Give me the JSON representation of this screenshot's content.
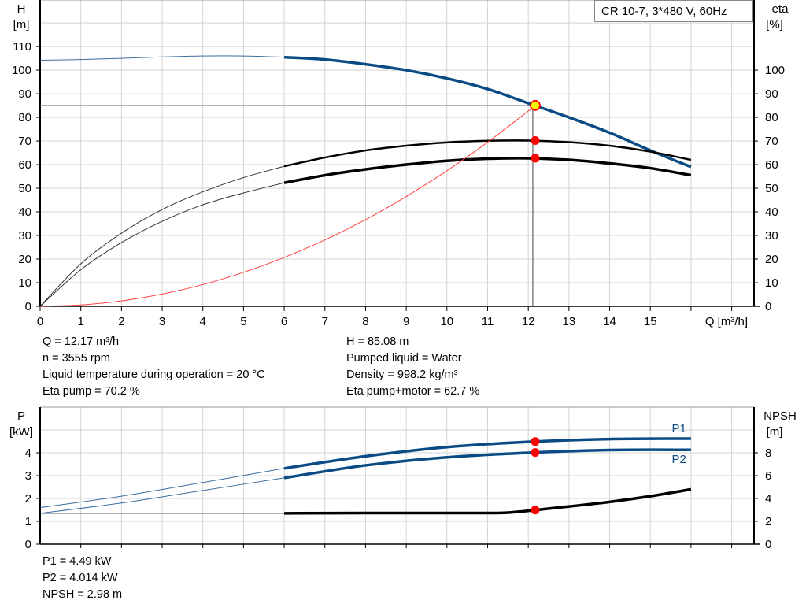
{
  "chart_data": [
    {
      "type": "line",
      "title": "CR 10-7, 3*480 V, 60Hz",
      "xlabel": "Q [m³/h]",
      "ylabel_left": {
        "name": "H",
        "unit": "[m]"
      },
      "ylabel_right": {
        "name": "eta",
        "unit": "[%]"
      },
      "xlim": [
        0,
        17.55
      ],
      "ylim_left": [
        0,
        129.7
      ],
      "ylim_right": [
        0,
        129.7
      ],
      "x_ticks": [
        "0",
        "1",
        "2",
        "3",
        "4",
        "5",
        "6",
        "7",
        "8",
        "9",
        "10",
        "11",
        "12",
        "13",
        "14",
        "15"
      ],
      "y_ticks_left": [
        "0",
        "10",
        "20",
        "30",
        "40",
        "50",
        "60",
        "70",
        "80",
        "90",
        "100",
        "110"
      ],
      "y_ticks_right": [
        "0",
        "10",
        "20",
        "30",
        "40",
        "50",
        "60",
        "70",
        "80",
        "90",
        "100"
      ],
      "grid": true,
      "series": [
        {
          "key": "H",
          "axis": "left",
          "color": "#0a4a85",
          "thin_until": 6,
          "x": [
            0,
            1,
            2,
            3,
            4,
            5,
            6,
            7,
            8,
            9,
            10,
            11,
            12,
            13,
            14,
            15,
            16
          ],
          "y": [
            104.2,
            104.5,
            105,
            105.6,
            106,
            106,
            105.5,
            104.5,
            102.5,
            100,
            96.5,
            92,
            86,
            80,
            73.5,
            66,
            59
          ]
        },
        {
          "key": "eta_pump",
          "axis": "right",
          "color": "#000000",
          "thin_until": 6,
          "x": [
            0,
            1,
            2,
            3,
            4,
            5,
            6,
            7,
            8,
            9,
            10,
            11,
            12,
            13,
            14,
            15,
            16
          ],
          "y": [
            0,
            18,
            31,
            41,
            48.5,
            54.5,
            59.3,
            63,
            66,
            68,
            69.4,
            70.1,
            70.2,
            69.5,
            68,
            65.5,
            62
          ]
        },
        {
          "key": "eta_pump_motor",
          "axis": "right",
          "color": "#000000",
          "thin_until": 6,
          "x": [
            0,
            1,
            2,
            3,
            4,
            5,
            6,
            7,
            8,
            9,
            10,
            11,
            12,
            13,
            14,
            15,
            16
          ],
          "y": [
            0,
            15.5,
            27,
            36,
            43,
            48,
            52.3,
            55.5,
            58,
            60,
            61.6,
            62.5,
            62.7,
            62,
            60.5,
            58.5,
            55.5
          ]
        },
        {
          "key": "system_curve",
          "axis": "left",
          "color": "#ff4040",
          "x": [
            0,
            1,
            2,
            3,
            4,
            5,
            6,
            7,
            8,
            9,
            10,
            11,
            12,
            12.17
          ],
          "y": [
            0,
            0.57,
            2.3,
            5.2,
            9.2,
            14.4,
            20.7,
            28.1,
            36.7,
            46.5,
            57.4,
            69.5,
            82.7,
            85.08
          ]
        }
      ],
      "operating_point": {
        "Q": 12.17,
        "H": 85.08,
        "eta_pump": 70.2,
        "eta_pump_motor": 62.7
      }
    },
    {
      "type": "line",
      "ylabel_left": {
        "name": "P",
        "unit": "[kW]"
      },
      "ylabel_right": {
        "name": "NPSH",
        "unit": "[m]"
      },
      "xlim": [
        0,
        17.55
      ],
      "ylim_left": [
        0,
        6
      ],
      "ylim_right": [
        0,
        12
      ],
      "y_ticks_left": [
        "0",
        "1",
        "2",
        "3",
        "4"
      ],
      "y_ticks_right": [
        "0",
        "2",
        "4",
        "6",
        "8"
      ],
      "grid": true,
      "series": [
        {
          "key": "P1",
          "name": "P1",
          "axis": "left",
          "color": "#0a4a85",
          "thin_until": 6,
          "x": [
            0,
            2,
            4,
            6,
            8,
            10,
            12,
            14,
            16
          ],
          "y": [
            1.6,
            2.1,
            2.7,
            3.32,
            3.85,
            4.25,
            4.48,
            4.6,
            4.62
          ]
        },
        {
          "key": "P2",
          "name": "P2",
          "axis": "left",
          "color": "#0a4a85",
          "thin_until": 6,
          "x": [
            0,
            2,
            4,
            6,
            8,
            10,
            12,
            14,
            16
          ],
          "y": [
            1.35,
            1.8,
            2.35,
            2.9,
            3.45,
            3.8,
            4.0,
            4.12,
            4.13
          ]
        },
        {
          "key": "NPSH",
          "axis": "right",
          "color": "#000000",
          "thin_until": 6,
          "x": [
            0,
            6,
            8,
            10,
            11,
            11.5,
            12.17,
            13,
            14,
            15,
            16
          ],
          "y": [
            2.7,
            2.7,
            2.72,
            2.72,
            2.72,
            2.76,
            2.98,
            3.3,
            3.7,
            4.2,
            4.8
          ]
        }
      ],
      "operating_point": {
        "Q": 12.17,
        "P1": 4.49,
        "P2": 4.014,
        "NPSH": 2.98
      }
    }
  ],
  "info_top": {
    "left": [
      "Q = 12.17 m³/h",
      "n = 3555 rpm",
      "Liquid temperature during operation = 20 °C",
      "Eta pump = 70.2 %"
    ],
    "right": [
      "H = 85.08 m",
      "Pumped liquid = Water",
      "Density = 998.2 kg/m³",
      "Eta pump+motor = 62.7 %"
    ]
  },
  "info_bottom": [
    "P1 = 4.49 kW",
    "P2 = 4.014 kW",
    "NPSH = 2.98 m"
  ]
}
